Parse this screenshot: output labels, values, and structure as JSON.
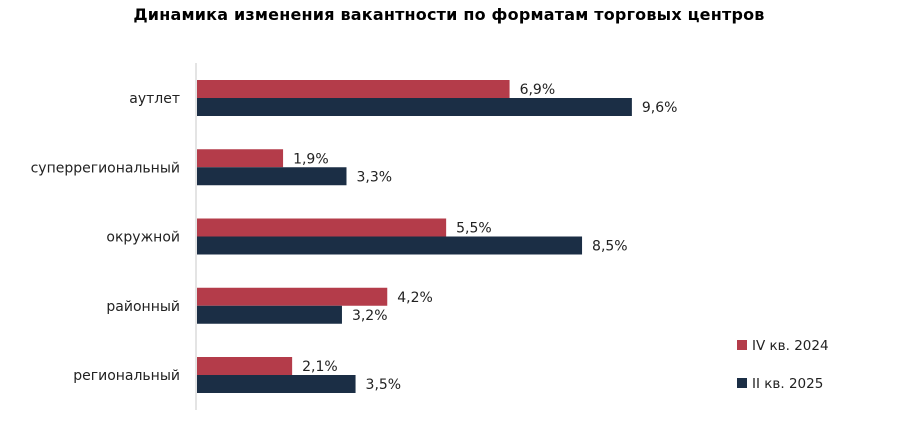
{
  "chart_data": {
    "type": "bar",
    "orientation": "horizontal",
    "title": "Динамика изменения вакантности по форматам торговых центров",
    "categories": [
      "аутлет",
      "суперрегиональный",
      "окружной",
      "районный",
      "региональный"
    ],
    "series": [
      {
        "name": "IV кв. 2024",
        "color": "#b43c4a",
        "values": [
          6.9,
          1.9,
          5.5,
          4.2,
          2.1
        ],
        "labels": [
          "6,9%",
          "1,9%",
          "5,5%",
          "4,2%",
          "2,1%"
        ]
      },
      {
        "name": "II кв. 2025",
        "color": "#1b2e45",
        "values": [
          9.6,
          3.3,
          8.5,
          3.2,
          3.5
        ],
        "labels": [
          "9,6%",
          "3,3%",
          "8,5%",
          "3,2%",
          "3,5%"
        ]
      }
    ],
    "xlabel": "",
    "ylabel": "",
    "xlim": [
      0,
      10
    ],
    "grid": false,
    "legend_position": "bottom-right"
  },
  "colors": {
    "axis": "#c8c8c8"
  }
}
